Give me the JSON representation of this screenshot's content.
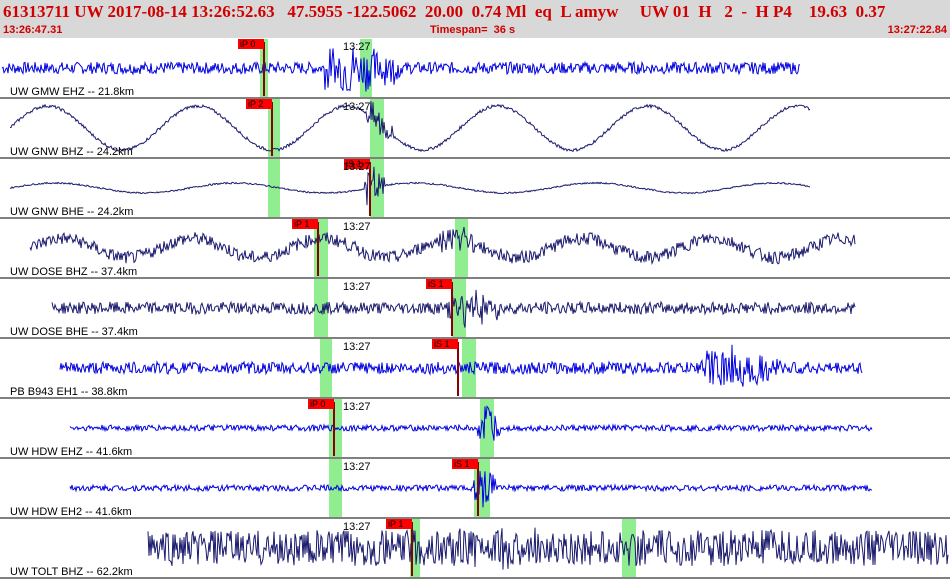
{
  "header": {
    "title": "61313711 UW 2017-08-14 13:26:52.63   47.5955 -122.5062  20.00  0.74 Ml  eq  L amyw     UW 01  H   2  -  H P4    19.63  0.37",
    "start_time": "13:26:47.31",
    "timespan": "Timespan=  36 s",
    "end_time": "13:27:22.84"
  },
  "colors": {
    "header_bg": "#d8d8d8",
    "header_text": "#d00000",
    "trace_blue": "#0000e0",
    "trace_navy": "#1a1a6e",
    "pick_flag": "#ff0000",
    "pick_window": "#90ee90"
  },
  "minute_marker": "13:27",
  "traces": [
    {
      "label": "UW GMW EHZ -- 21.8km",
      "color": "blue",
      "picks": [
        {
          "label": "iP 0"
        }
      ]
    },
    {
      "label": "UW GNW BHZ -- 24.2km",
      "color": "navy",
      "picks": [
        {
          "label": "iP 2"
        }
      ]
    },
    {
      "label": "UW GNW BHE -- 24.2km",
      "color": "navy",
      "picks": [
        {
          "label": "iS 1"
        }
      ]
    },
    {
      "label": "UW DOSE BHZ -- 37.4km",
      "color": "navy",
      "picks": [
        {
          "label": "iP 1"
        }
      ]
    },
    {
      "label": "UW DOSE BHE -- 37.4km",
      "color": "navy",
      "picks": [
        {
          "label": "iS 1"
        }
      ]
    },
    {
      "label": "PB B943 EH1 -- 38.8km",
      "color": "blue",
      "picks": [
        {
          "label": "iS 1"
        }
      ]
    },
    {
      "label": "UW HDW EHZ -- 41.6km",
      "color": "blue",
      "picks": [
        {
          "label": "iP 0"
        }
      ]
    },
    {
      "label": "UW HDW EH2 -- 41.6km",
      "color": "blue",
      "picks": [
        {
          "label": "iS 1"
        }
      ]
    },
    {
      "label": "UW TOLT BHZ -- 62.2km",
      "color": "navy",
      "picks": [
        {
          "label": "iP 1"
        }
      ]
    }
  ]
}
